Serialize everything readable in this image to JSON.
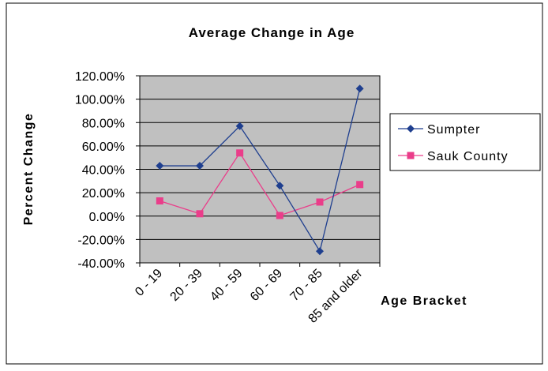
{
  "chart_data": {
    "type": "line",
    "title": "Average Change in Age",
    "xlabel": "Age Bracket",
    "ylabel": "Percent Change",
    "categories": [
      "0 - 19",
      "20 - 39",
      "40 - 59",
      "60 - 69",
      "70 - 85",
      "85 and older"
    ],
    "yticks": [
      "120.00%",
      "100.00%",
      "80.00%",
      "60.00%",
      "40.00%",
      "20.00%",
      "0.00%",
      "-20.00%",
      "-40.00%"
    ],
    "ylim": [
      -40,
      120
    ],
    "ytick_step": 20,
    "grid": true,
    "legend_position": "right",
    "background_color": "#c0c0c0",
    "series": [
      {
        "name": "Sumpter",
        "values": [
          43,
          43,
          77,
          26,
          -30,
          109
        ],
        "color": "#1f3f8f",
        "marker": "diamond"
      },
      {
        "name": "Sauk County",
        "values": [
          13,
          2,
          54,
          0.5,
          12,
          27
        ],
        "color": "#ea3d8a",
        "marker": "square"
      }
    ]
  }
}
